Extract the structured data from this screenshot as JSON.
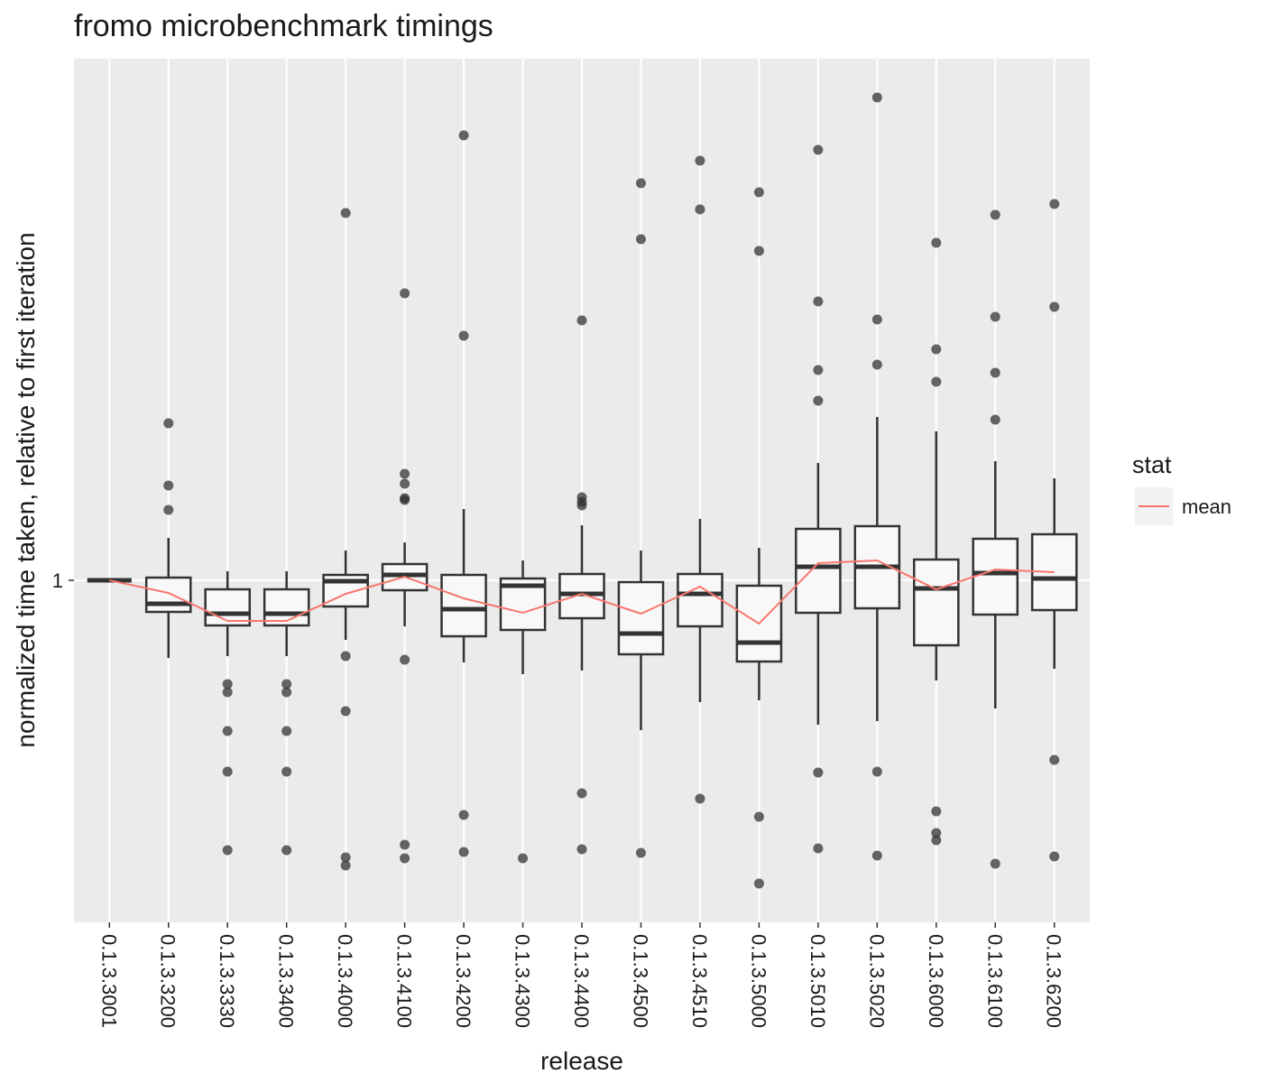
{
  "chart_data": {
    "type": "boxplot",
    "title": "fromo microbenchmark timings",
    "xlabel": "release",
    "ylabel": "normalized time taken, relative to first iteration",
    "categories": [
      "0.1.3.3001",
      "0.1.3.3200",
      "0.1.3.3330",
      "0.1.3.3400",
      "0.1.3.4000",
      "0.1.3.4100",
      "0.1.3.4200",
      "0.1.3.4300",
      "0.1.3.4400",
      "0.1.3.4500",
      "0.1.3.4510",
      "0.1.3.5000",
      "0.1.3.5010",
      "0.1.3.5020",
      "0.1.3.6000",
      "0.1.3.6100",
      "0.1.3.6200"
    ],
    "boxes": [
      {
        "whislo": 1,
        "q1": 1,
        "med": 1,
        "q3": 1,
        "whishi": 1,
        "fliers": []
      },
      {
        "whislo": 0.957,
        "q1": 0.9825,
        "med": 0.987,
        "q3": 1.0015,
        "whishi": 1.0235,
        "fliers": [
          1.087,
          1.0525,
          1.039
        ]
      },
      {
        "whislo": 0.958,
        "q1": 0.975,
        "med": 0.9815,
        "q3": 0.995,
        "whishi": 1.005,
        "fliers": [
          0.9425,
          0.938,
          0.9165,
          0.894,
          0.8505
        ]
      },
      {
        "whislo": 0.958,
        "q1": 0.975,
        "med": 0.9815,
        "q3": 0.995,
        "whishi": 1.005,
        "fliers": [
          0.9425,
          0.938,
          0.9165,
          0.894,
          0.8505
        ]
      },
      {
        "whislo": 0.967,
        "q1": 0.9855,
        "med": 0.9995,
        "q3": 1.003,
        "whishi": 1.0165,
        "fliers": [
          1.2035,
          0.958,
          0.9275,
          0.8465,
          0.842
        ]
      },
      {
        "whislo": 0.9745,
        "q1": 0.9945,
        "med": 1.003,
        "q3": 1.009,
        "whishi": 1.021,
        "fliers": [
          1.159,
          1.059,
          1.0535,
          1.0455,
          1.0445,
          0.956,
          0.8535,
          0.846
        ]
      },
      {
        "whislo": 0.9545,
        "q1": 0.969,
        "med": 0.984,
        "q3": 1.003,
        "whishi": 1.0395,
        "fliers": [
          1.2465,
          1.1355,
          0.87,
          0.8495
        ]
      },
      {
        "whislo": 0.948,
        "q1": 0.9725,
        "med": 0.997,
        "q3": 1.001,
        "whishi": 1.011,
        "fliers": [
          0.846
        ]
      },
      {
        "whislo": 0.95,
        "q1": 0.979,
        "med": 0.9925,
        "q3": 1.0035,
        "whishi": 1.0305,
        "fliers": [
          1.144,
          1.046,
          1.0435,
          1.0415,
          0.882,
          0.851
        ]
      },
      {
        "whislo": 0.917,
        "q1": 0.959,
        "med": 0.9705,
        "q3": 0.999,
        "whishi": 1.0165,
        "fliers": [
          1.22,
          1.189,
          0.849
        ]
      },
      {
        "whislo": 0.9325,
        "q1": 0.9745,
        "med": 0.9925,
        "q3": 1.0035,
        "whishi": 1.034,
        "fliers": [
          1.2325,
          1.2055,
          0.879
        ]
      },
      {
        "whislo": 0.9335,
        "q1": 0.955,
        "med": 0.9655,
        "q3": 0.997,
        "whishi": 1.018,
        "fliers": [
          1.215,
          1.1825,
          0.869,
          0.832
        ]
      },
      {
        "whislo": 0.92,
        "q1": 0.982,
        "med": 1.0075,
        "q3": 1.0285,
        "whishi": 1.065,
        "fliers": [
          1.2385,
          1.1545,
          1.1165,
          1.0995,
          0.8935,
          0.8515
        ]
      },
      {
        "whislo": 0.922,
        "q1": 0.9845,
        "med": 1.0075,
        "q3": 1.03,
        "whishi": 1.0905,
        "fliers": [
          1.2675,
          1.1445,
          1.1195,
          0.894,
          0.8475
        ]
      },
      {
        "whislo": 0.9445,
        "q1": 0.964,
        "med": 0.9955,
        "q3": 1.0115,
        "whishi": 1.0825,
        "fliers": [
          1.187,
          1.128,
          1.11,
          0.872,
          0.86,
          0.856
        ]
      },
      {
        "whislo": 0.929,
        "q1": 0.981,
        "med": 1.004,
        "q3": 1.023,
        "whishi": 1.066,
        "fliers": [
          1.2025,
          1.146,
          1.115,
          1.089,
          0.843
        ]
      },
      {
        "whislo": 0.951,
        "q1": 0.9835,
        "med": 1.001,
        "q3": 1.0255,
        "whishi": 1.0565,
        "fliers": [
          1.2085,
          1.1515,
          0.9005,
          0.847
        ]
      }
    ],
    "series": [
      {
        "name": "mean",
        "color": "#f8766d",
        "values": [
          1,
          0.993,
          0.9775,
          0.9775,
          0.9925,
          1.002,
          0.99,
          0.982,
          0.9925,
          0.9815,
          0.9965,
          0.976,
          1.0095,
          1.011,
          0.995,
          1.006,
          1.0045
        ]
      }
    ],
    "legend_title": "stat",
    "ylim": [
      0.8105,
      1.289
    ],
    "yticks": [
      1
    ],
    "grid": true
  }
}
